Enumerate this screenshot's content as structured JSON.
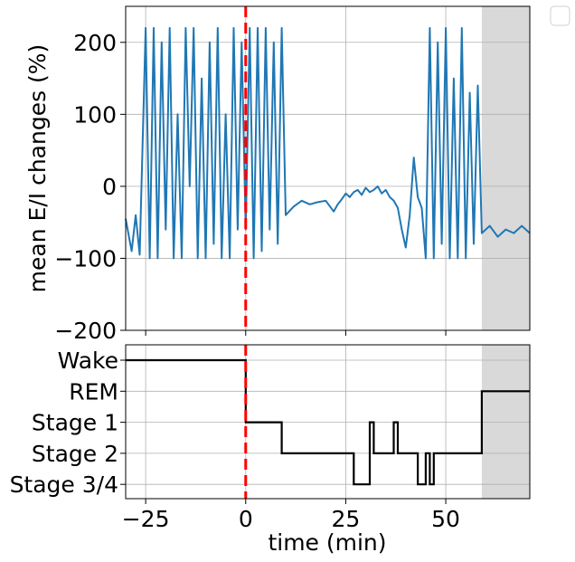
{
  "chart_data": [
    {
      "type": "line",
      "panel": "top",
      "ylabel": "mean E/I changes (%)",
      "xlabel": "",
      "xlim": [
        -30,
        71
      ],
      "ylim": [
        -200,
        250
      ],
      "yticks": [
        -200,
        -100,
        0,
        100,
        200
      ],
      "xticks": [
        -25,
        0,
        25,
        50
      ],
      "grid": true,
      "shaded_region": {
        "x_start": 59,
        "x_end": 71,
        "color": "#d9d9d9"
      },
      "event_line": {
        "x": 0,
        "color": "#ff0000",
        "style": "dashed"
      },
      "series": [
        {
          "color": "#1f77b4",
          "x": [
            -30,
            -28.5,
            -27.5,
            -26.5,
            -25,
            -24,
            -23,
            -22,
            -21,
            -20,
            -19,
            -18,
            -17,
            -16,
            -15,
            -14,
            -13,
            -12,
            -11,
            -10,
            -9,
            -8,
            -7,
            -6,
            -5,
            -4,
            -3,
            -2,
            -1,
            0,
            1,
            2,
            3,
            4,
            5,
            6,
            7,
            8,
            9,
            10,
            12,
            14,
            16,
            18,
            20,
            22,
            23,
            24,
            25,
            26,
            27,
            28,
            29,
            30,
            31,
            32,
            33,
            34,
            35,
            36,
            37,
            38,
            39,
            40,
            41,
            42,
            43,
            44,
            45,
            46,
            47,
            48,
            49,
            50,
            51,
            52,
            53,
            54,
            55,
            56,
            57,
            58,
            59,
            61,
            63,
            65,
            67,
            69,
            71
          ],
          "values": [
            -45,
            -90,
            -40,
            -95,
            220,
            -100,
            220,
            -100,
            200,
            -60,
            220,
            -100,
            100,
            -100,
            220,
            0,
            220,
            -100,
            150,
            -100,
            200,
            -80,
            220,
            -100,
            100,
            -100,
            220,
            -60,
            200,
            -60,
            220,
            -100,
            220,
            -90,
            220,
            -60,
            200,
            -80,
            220,
            -40,
            -28,
            -20,
            -25,
            -22,
            -20,
            -35,
            -25,
            -18,
            -10,
            -15,
            -8,
            -5,
            -12,
            -2,
            -8,
            -5,
            0,
            -10,
            -5,
            -15,
            -20,
            -30,
            -60,
            -85,
            -40,
            40,
            -15,
            -30,
            -100,
            220,
            -100,
            200,
            -80,
            220,
            -100,
            150,
            -100,
            220,
            -100,
            130,
            -80,
            140,
            -65,
            -55,
            -70,
            -60,
            -65,
            -55,
            -65
          ]
        }
      ]
    },
    {
      "type": "line",
      "panel": "bottom",
      "xlabel": "time (min)",
      "ylabel": "",
      "xlim": [
        -30,
        71
      ],
      "categories": [
        "Wake",
        "REM",
        "Stage 1",
        "Stage 2",
        "Stage 3/4"
      ],
      "xticks": [
        -25,
        0,
        25,
        50
      ],
      "grid": true,
      "shaded_region": {
        "x_start": 59,
        "x_end": 71,
        "color": "#d9d9d9"
      },
      "event_line": {
        "x": 0,
        "color": "#ff0000",
        "style": "dashed"
      },
      "series": [
        {
          "color": "#000000",
          "x": [
            -30,
            0,
            0,
            9,
            9,
            27,
            27,
            31,
            31,
            32,
            32,
            37,
            37,
            38,
            38,
            43,
            43,
            45,
            45,
            46,
            46,
            47,
            47,
            59,
            59,
            71
          ],
          "values": [
            "Wake",
            "Wake",
            "Stage 1",
            "Stage 1",
            "Stage 2",
            "Stage 2",
            "Stage 3/4",
            "Stage 3/4",
            "Stage 1",
            "Stage 1",
            "Stage 2",
            "Stage 2",
            "Stage 1",
            "Stage 1",
            "Stage 2",
            "Stage 2",
            "Stage 3/4",
            "Stage 3/4",
            "Stage 2",
            "Stage 2",
            "Stage 3/4",
            "Stage 3/4",
            "Stage 2",
            "Stage 2",
            "REM",
            "REM"
          ]
        }
      ]
    }
  ],
  "legend": {
    "placement": "top-right",
    "entries": []
  }
}
